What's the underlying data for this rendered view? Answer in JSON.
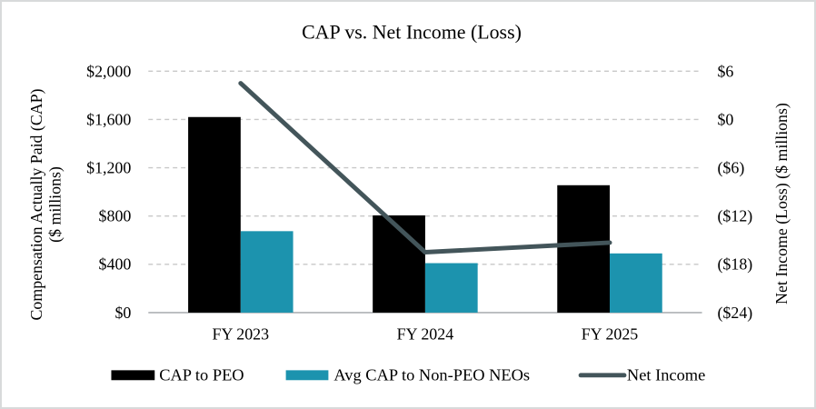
{
  "title": "CAP vs. Net Income (Loss)",
  "chart_data": {
    "type": "combo-bar-line",
    "categories": [
      "FY 2023",
      "FY 2024",
      "FY 2025"
    ],
    "series": [
      {
        "name": "CAP to PEO",
        "type": "bar",
        "axis": "left",
        "color": "#000000",
        "values": [
          1620,
          805,
          1055
        ]
      },
      {
        "name": "Avg CAP to Non-PEO NEOs",
        "type": "bar",
        "axis": "left",
        "color": "#1C93AE",
        "values": [
          675,
          410,
          490
        ]
      },
      {
        "name": "Net Income",
        "type": "line",
        "axis": "right",
        "color": "#43555A",
        "values": [
          4.5,
          -16.5,
          -15.3
        ]
      }
    ],
    "left_axis": {
      "label_line1": "Compensation Actually Paid (CAP)",
      "label_line2": "($ millions)",
      "min": 0,
      "max": 2000,
      "ticks": [
        2000,
        1600,
        1200,
        800,
        400,
        0
      ],
      "tick_labels": [
        "$2,000",
        "$1,600",
        "$1,200",
        "$800",
        "$400",
        "$0"
      ]
    },
    "right_axis": {
      "label": "Net Income (Loss) ($ millions)",
      "min": -24,
      "max": 6,
      "ticks": [
        6,
        0,
        -6,
        -12,
        -18,
        -24
      ],
      "tick_labels": [
        "$6",
        "$0",
        "($6)",
        "($12)",
        "($18)",
        "($24)"
      ]
    },
    "grid": {
      "horizontal": true,
      "style": "dashed",
      "color": "#c8c8c8",
      "axis_line_color": "#b9bcbe"
    },
    "legend_position": "bottom"
  }
}
